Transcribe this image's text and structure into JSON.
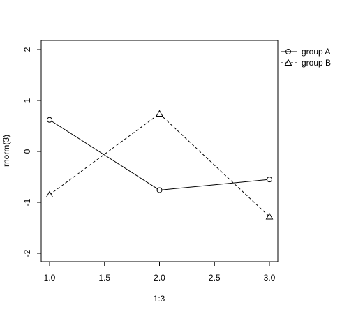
{
  "chart_data": {
    "type": "line",
    "xlabel": "1:3",
    "ylabel": "rnorm(3)",
    "xlim": [
      1.0,
      3.0
    ],
    "ylim": [
      -2,
      2
    ],
    "x_ticks": [
      "1.0",
      "1.5",
      "2.0",
      "2.5",
      "3.0"
    ],
    "y_ticks": [
      "-2",
      "-1",
      "0",
      "1",
      "2"
    ],
    "x": [
      1,
      2,
      3
    ],
    "series": [
      {
        "name": "group A",
        "values": [
          0.62,
          -0.76,
          -0.55
        ],
        "marker": "circle",
        "line": "solid"
      },
      {
        "name": "group B",
        "values": [
          -0.85,
          0.74,
          -1.28
        ],
        "marker": "triangle",
        "line": "dashed"
      }
    ],
    "legend_position": "top-right (outside plot)",
    "grid": false,
    "colors": {
      "lines": "#000000",
      "background": "#ffffff"
    }
  }
}
